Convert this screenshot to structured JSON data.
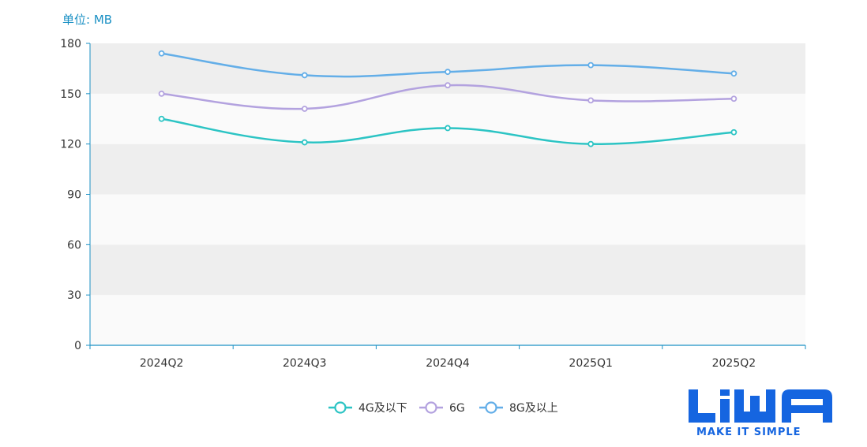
{
  "unit_label": "单位: MB",
  "logo": {
    "brand": "LiWA",
    "tagline": "MAKE IT SIMPLE",
    "color": "#1565e0"
  },
  "chart_data": {
    "type": "line",
    "categories": [
      "2024Q2",
      "2024Q3",
      "2024Q4",
      "2025Q1",
      "2025Q2"
    ],
    "ylim": [
      0,
      180
    ],
    "yticks": [
      0,
      30,
      60,
      90,
      120,
      150,
      180
    ],
    "grid": "banded",
    "legend": "bottom-center",
    "smooth": true,
    "series": [
      {
        "name": "4G及以下",
        "color": "#2cc4c4",
        "values": [
          135,
          121,
          129.5,
          120,
          127
        ]
      },
      {
        "name": "6G",
        "color": "#b3a2df",
        "values": [
          150,
          141,
          155,
          146,
          147
        ]
      },
      {
        "name": "8G及以上",
        "color": "#63aee8",
        "values": [
          174,
          161,
          163,
          167,
          162
        ]
      }
    ]
  }
}
